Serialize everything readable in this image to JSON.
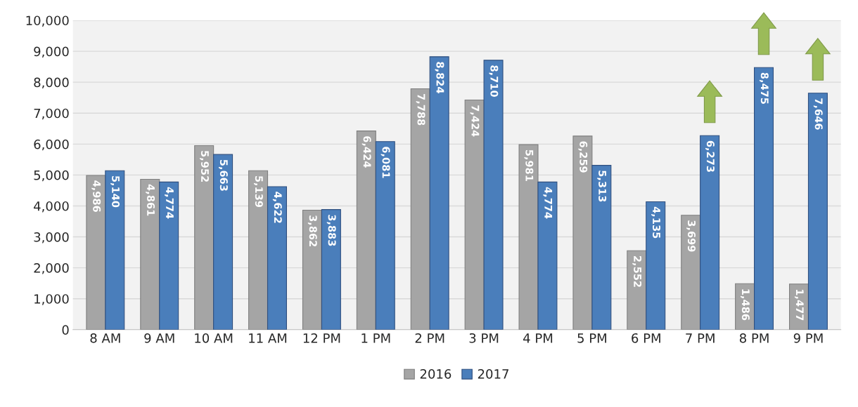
{
  "chart_data": {
    "type": "bar",
    "categories": [
      "8 AM",
      "9 AM",
      "10 AM",
      "11 AM",
      "12 PM",
      "1 PM",
      "2 PM",
      "3 PM",
      "4 PM",
      "5 PM",
      "6 PM",
      "7 PM",
      "8 PM",
      "9 PM"
    ],
    "series": [
      {
        "name": "2016",
        "color": "#a5a5a5",
        "values": [
          4986,
          4861,
          5952,
          5139,
          3862,
          6424,
          7788,
          7424,
          5981,
          6259,
          2552,
          3699,
          1486,
          1477
        ],
        "value_labels": [
          "4,986",
          "4,861",
          "5,952",
          "5,139",
          "3,862",
          "6,424",
          "7,788",
          "7,424",
          "5,981",
          "6,259",
          "2,552",
          "3,699",
          "1,486",
          "1,477"
        ]
      },
      {
        "name": "2017",
        "color": "#4a7ebb",
        "values": [
          5140,
          4774,
          5663,
          4622,
          3883,
          6081,
          8824,
          8710,
          4774,
          5313,
          4135,
          6273,
          8475,
          7646
        ],
        "value_labels": [
          "5,140",
          "4,774",
          "5,663",
          "4,622",
          "3,883",
          "6,081",
          "8,824",
          "8,710",
          "4,774",
          "5,313",
          "4,135",
          "6,273",
          "8,475",
          "7,646"
        ]
      }
    ],
    "ylim": [
      0,
      10000
    ],
    "yticks": [
      0,
      {
        "value": 1000,
        "label": "1,000"
      },
      {
        "value": 2000,
        "label": "2,000"
      },
      {
        "value": 3000,
        "label": "3,000"
      },
      {
        "value": 4000,
        "label": "4,000"
      },
      {
        "value": 5000,
        "label": "5,000"
      },
      {
        "value": 6000,
        "label": "6,000"
      },
      {
        "value": 7000,
        "label": "7,000"
      },
      {
        "value": 8000,
        "label": "8,000"
      },
      {
        "value": 9000,
        "label": "9,000"
      },
      {
        "value": 10000,
        "label": "10,000"
      }
    ],
    "grid": "y",
    "legend": "bottom"
  }
}
